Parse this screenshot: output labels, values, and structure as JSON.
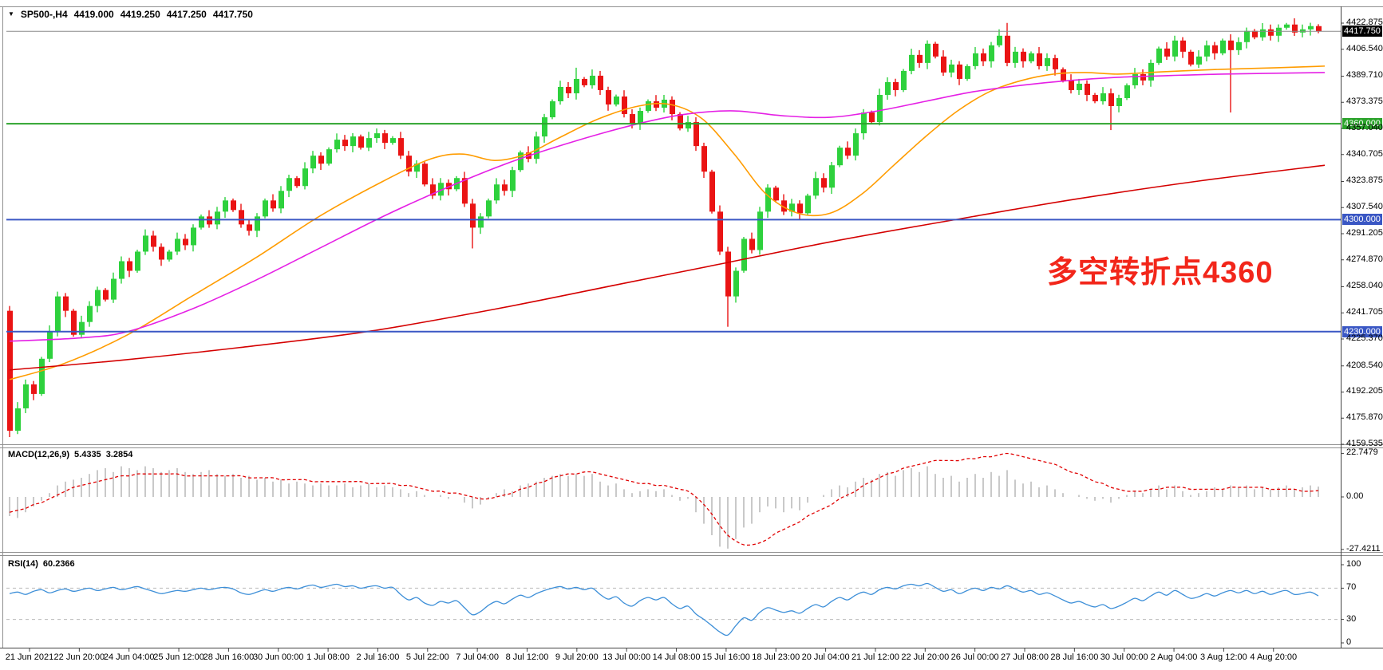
{
  "title": {
    "symbol": "SP500-,H4",
    "open": "4419.000",
    "high": "4419.250",
    "low": "4417.250",
    "close": "4417.750"
  },
  "icons": {
    "symbol_dropdown": "▼"
  },
  "annotation": {
    "text": "多空转折点4360",
    "color": "#f2261a"
  },
  "indicators": {
    "macd": {
      "label": "MACD(12,26,9)",
      "macd_value": "5.4335",
      "signal_value": "3.2854"
    },
    "rsi": {
      "label": "RSI(14)",
      "value": "60.2366"
    }
  },
  "colors": {
    "candle_up": "#2ed13d",
    "candle_down": "#ea1414",
    "ma_fast": "#ff9c00",
    "ma_mid": "#e520e5",
    "ma_slow": "#d40000",
    "macd_histogram": "#c9c9c9",
    "macd_signal": "#e00000",
    "rsi_line": "#3d8fd8",
    "level_green": "#2ca32c",
    "level_blue": "#3a57c4",
    "current_price_line": "#8a8a8a",
    "current_price_badge": "#000000"
  },
  "chart_data": [
    {
      "type": "candlestick",
      "symbol": "SP500-,H4",
      "timeframe": "H4",
      "ohlc_display": {
        "open": 4419.0,
        "high": 4419.25,
        "low": 4417.25,
        "close": 4417.75
      },
      "y_axis_ticks": [
        {
          "label": "4422.875",
          "price": 4422.875
        },
        {
          "label": "4406.540",
          "price": 4406.54
        },
        {
          "label": "4389.710",
          "price": 4389.71
        },
        {
          "label": "4373.375",
          "price": 4373.375
        },
        {
          "label": "4357.040",
          "price": 4357.04
        },
        {
          "label": "4340.705",
          "price": 4340.705
        },
        {
          "label": "4323.875",
          "price": 4323.875
        },
        {
          "label": "4307.540",
          "price": 4307.54
        },
        {
          "label": "4291.205",
          "price": 4291.205
        },
        {
          "label": "4274.870",
          "price": 4274.87
        },
        {
          "label": "4258.040",
          "price": 4258.04
        },
        {
          "label": "4241.705",
          "price": 4241.705
        },
        {
          "label": "4225.370",
          "price": 4225.37
        },
        {
          "label": "4208.540",
          "price": 4208.54
        },
        {
          "label": "4192.205",
          "price": 4192.205
        },
        {
          "label": "4175.870",
          "price": 4175.87
        },
        {
          "label": "4159.535",
          "price": 4159.535
        }
      ],
      "x_axis_labels": [
        "21 Jun 2021",
        "22 Jun 20:00",
        "24 Jun 04:00",
        "25 Jun 12:00",
        "28 Jun 16:00",
        "30 Jun 00:00",
        "1 Jul 08:00",
        "2 Jul 16:00",
        "5 Jul 22:00",
        "7 Jul 04:00",
        "8 Jul 12:00",
        "9 Jul 20:00",
        "13 Jul 00:00",
        "14 Jul 08:00",
        "15 Jul 16:00",
        "18 Jul 23:00",
        "20 Jul 04:00",
        "21 Jul 12:00",
        "22 Jul 20:00",
        "26 Jul 00:00",
        "27 Jul 08:00",
        "28 Jul 16:00",
        "30 Jul 00:00",
        "2 Aug 04:00",
        "3 Aug 12:00",
        "4 Aug 20:00"
      ],
      "price_lines": [
        {
          "name": "current-price",
          "label": "4417.750",
          "price": 4417.75,
          "color": "#8a8a8a",
          "badge_bg": "#000000",
          "width": 1
        },
        {
          "name": "level-4360",
          "label": "4360.000",
          "price": 4360.0,
          "color": "#2ca32c",
          "badge_bg": "#2ca32c",
          "width": 2
        },
        {
          "name": "level-4300",
          "label": "4300.000",
          "price": 4300.0,
          "color": "#3a57c4",
          "badge_bg": "#3a57c4",
          "width": 2
        },
        {
          "name": "level-4230",
          "label": "4230.000",
          "price": 4230.0,
          "color": "#3a57c4",
          "badge_bg": "#3a57c4",
          "width": 2
        }
      ],
      "candles": {
        "note": "estimated closes read from pixels, one candle per 10px; open = previous close",
        "closes": [
          4168,
          4182,
          4197,
          4191,
          4213,
          4230,
          4252,
          4243,
          4228,
          4236,
          4246,
          4256,
          4250,
          4263,
          4274,
          4268,
          4280,
          4290,
          4283,
          4275,
          4280,
          4288,
          4284,
          4295,
          4302,
          4297,
          4305,
          4312,
          4306,
          4297,
          4293,
          4302,
          4312,
          4307,
          4318,
          4326,
          4321,
          4332,
          4340,
          4335,
          4344,
          4350,
          4346,
          4352,
          4345,
          4351,
          4354,
          4348,
          4351,
          4340,
          4330,
          4335,
          4322,
          4315,
          4323,
          4319,
          4326,
          4310,
          4295,
          4302,
          4312,
          4322,
          4318,
          4331,
          4342,
          4338,
          4352,
          4364,
          4374,
          4383,
          4379,
          4388,
          4384,
          4390,
          4381,
          4372,
          4377,
          4366,
          4360,
          4368,
          4374,
          4370,
          4375,
          4366,
          4357,
          4361,
          4346,
          4330,
          4305,
          4280,
          4252,
          4268,
          4288,
          4281,
          4305,
          4320,
          4312,
          4305,
          4310,
          4304,
          4315,
          4326,
          4320,
          4334,
          4345,
          4340,
          4354,
          4367,
          4361,
          4378,
          4386,
          4381,
          4393,
          4403,
          4398,
          4410,
          4402,
          4392,
          4397,
          4388,
          4396,
          4404,
          4399,
          4409,
          4415,
          4398,
          4405,
          4399,
          4404,
          4396,
          4401,
          4394,
          4387,
          4381,
          4385,
          4378,
          4374,
          4379,
          4371,
          4376,
          4384,
          4391,
          4387,
          4398,
          4407,
          4402,
          4412,
          4405,
          4397,
          4402,
          4409,
          4404,
          4412,
          4406,
          4411,
          4418,
          4414,
          4419,
          4415,
          4420,
          4422,
          4417,
          4419,
          4421,
          4417.75
        ],
        "overrides": {
          "0": {
            "open": 4243,
            "high": 4246,
            "low": 4164
          },
          "58": {
            "low": 4282
          },
          "71": {
            "high": 4395
          },
          "90": {
            "low": 4233
          },
          "124": {
            "high": 4419
          },
          "125": {
            "high": 4423
          },
          "138": {
            "low": 4356
          },
          "153": {
            "low": 4367
          },
          "160": {
            "high": 4423
          }
        }
      },
      "moving_averages": [
        {
          "name": "fast",
          "color": "#ff9c00",
          "points": [
            [
              12,
              4200
            ],
            [
              80,
              4210
            ],
            [
              160,
              4228
            ],
            [
              240,
              4252
            ],
            [
              320,
              4276
            ],
            [
              400,
              4302
            ],
            [
              480,
              4324
            ],
            [
              540,
              4338
            ],
            [
              580,
              4341
            ],
            [
              620,
              4337
            ],
            [
              660,
              4341
            ],
            [
              700,
              4351
            ],
            [
              750,
              4363
            ],
            [
              800,
              4371
            ],
            [
              840,
              4372
            ],
            [
              880,
              4363
            ],
            [
              920,
              4341
            ],
            [
              960,
              4316
            ],
            [
              1000,
              4304
            ],
            [
              1040,
              4304
            ],
            [
              1080,
              4316
            ],
            [
              1120,
              4334
            ],
            [
              1160,
              4352
            ],
            [
              1200,
              4368
            ],
            [
              1240,
              4380
            ],
            [
              1280,
              4387
            ],
            [
              1320,
              4391
            ],
            [
              1360,
              4392
            ],
            [
              1400,
              4391
            ],
            [
              1440,
              4392
            ],
            [
              1480,
              4393
            ],
            [
              1530,
              4394
            ],
            [
              1600,
              4395
            ],
            [
              1660,
              4396
            ]
          ]
        },
        {
          "name": "mid",
          "color": "#e520e5",
          "points": [
            [
              12,
              4224
            ],
            [
              100,
              4226
            ],
            [
              160,
              4230
            ],
            [
              240,
              4244
            ],
            [
              320,
              4262
            ],
            [
              400,
              4282
            ],
            [
              480,
              4302
            ],
            [
              560,
              4320
            ],
            [
              640,
              4336
            ],
            [
              720,
              4349
            ],
            [
              800,
              4360
            ],
            [
              860,
              4366
            ],
            [
              920,
              4368
            ],
            [
              980,
              4365
            ],
            [
              1040,
              4364
            ],
            [
              1100,
              4368
            ],
            [
              1160,
              4374
            ],
            [
              1220,
              4380
            ],
            [
              1280,
              4384
            ],
            [
              1340,
              4387
            ],
            [
              1400,
              4389
            ],
            [
              1460,
              4390
            ],
            [
              1530,
              4391
            ],
            [
              1660,
              4392
            ]
          ]
        },
        {
          "name": "slow",
          "color": "#d40000",
          "points": [
            [
              12,
              4206
            ],
            [
              150,
              4212
            ],
            [
              300,
              4220
            ],
            [
              460,
              4230
            ],
            [
              620,
              4244
            ],
            [
              780,
              4260
            ],
            [
              900,
              4272
            ],
            [
              1050,
              4287
            ],
            [
              1220,
              4302
            ],
            [
              1350,
              4313
            ],
            [
              1500,
              4324
            ],
            [
              1660,
              4334
            ]
          ]
        }
      ],
      "annotation": "多空转折点4360"
    },
    {
      "type": "macd",
      "label": "MACD(12,26,9)",
      "macd_value": 5.4335,
      "signal_value": 3.2854,
      "axis": [
        {
          "label": "22.7479",
          "value": 22.7479
        },
        {
          "label": "0.00",
          "value": 0
        },
        {
          "label": "-27.4211",
          "value": -27.4211
        }
      ],
      "histogram": [
        -10,
        -11,
        -8,
        -5,
        -2,
        2,
        6,
        8,
        9,
        10,
        12,
        14,
        15,
        13,
        16,
        15,
        14,
        16,
        15,
        13,
        14,
        15,
        13,
        12,
        13,
        14,
        12,
        11,
        12,
        10,
        11,
        9,
        10,
        8,
        9,
        7,
        8,
        7,
        6,
        7,
        6,
        6,
        7,
        5,
        6,
        7,
        5,
        6,
        5,
        4,
        2,
        3,
        1,
        0,
        1,
        -1,
        0,
        -3,
        -6,
        -4,
        -1,
        2,
        4,
        3,
        6,
        7,
        8,
        10,
        11,
        12,
        11,
        12,
        11,
        12,
        8,
        6,
        7,
        4,
        2,
        3,
        4,
        3,
        4,
        1,
        -2,
        -1,
        -8,
        -14,
        -20,
        -26,
        -27,
        -22,
        -16,
        -14,
        -8,
        -5,
        -6,
        -8,
        -6,
        -7,
        -3,
        0,
        1,
        4,
        6,
        5,
        8,
        10,
        9,
        12,
        13,
        11,
        14,
        15,
        13,
        16,
        12,
        10,
        11,
        8,
        10,
        12,
        10,
        13,
        11,
        14,
        9,
        7,
        8,
        5,
        6,
        4,
        2,
        0,
        1,
        -1,
        -2,
        -1,
        -3,
        -1,
        1,
        3,
        2,
        4,
        6,
        4,
        6,
        3,
        1,
        2,
        3,
        5,
        4,
        6,
        5,
        6,
        4,
        5,
        4,
        5,
        6,
        4,
        5,
        6,
        5.4
      ],
      "signal": [
        -8,
        -7,
        -6,
        -4,
        -3,
        -1,
        1,
        3,
        5,
        6,
        7,
        8,
        9,
        10,
        11,
        11,
        12,
        12,
        12,
        12,
        12,
        12,
        11,
        11,
        11,
        11,
        11,
        11,
        11,
        11,
        10,
        10,
        10,
        10,
        9,
        9,
        9,
        9,
        8,
        8,
        8,
        8,
        8,
        8,
        8,
        7,
        7,
        7,
        7,
        6,
        6,
        5,
        4,
        3,
        3,
        2,
        2,
        1,
        0,
        -1,
        -1,
        0,
        1,
        2,
        4,
        5,
        7,
        8,
        10,
        11,
        12,
        12,
        13,
        13,
        12,
        11,
        10,
        9,
        8,
        7,
        7,
        6,
        6,
        5,
        4,
        3,
        0,
        -4,
        -9,
        -15,
        -20,
        -23,
        -25,
        -25,
        -24,
        -22,
        -19,
        -17,
        -15,
        -13,
        -10,
        -8,
        -6,
        -4,
        -1,
        1,
        3,
        6,
        8,
        10,
        12,
        13,
        15,
        16,
        17,
        18,
        19,
        19,
        19,
        19,
        20,
        20,
        21,
        21,
        22,
        22.7,
        22,
        21,
        20,
        19,
        18,
        17,
        15,
        13,
        12,
        10,
        8,
        7,
        5,
        4,
        3,
        3,
        3,
        4,
        4,
        5,
        5,
        5,
        4,
        4,
        4,
        4,
        4,
        5,
        5,
        5,
        5,
        5,
        4,
        4,
        4,
        4,
        3,
        3,
        3.3
      ]
    },
    {
      "type": "rsi",
      "label": "RSI(14)",
      "value": 60.2366,
      "axis": [
        100,
        70,
        30,
        0
      ],
      "levels": [
        70,
        30
      ],
      "values": [
        63,
        65,
        62,
        66,
        68,
        64,
        67,
        69,
        66,
        68,
        70,
        67,
        69,
        71,
        68,
        70,
        72,
        69,
        66,
        63,
        65,
        67,
        66,
        68,
        70,
        68,
        70,
        71,
        69,
        64,
        62,
        65,
        68,
        66,
        69,
        71,
        69,
        72,
        74,
        71,
        73,
        75,
        72,
        73,
        70,
        72,
        73,
        70,
        71,
        62,
        55,
        58,
        51,
        48,
        53,
        51,
        54,
        45,
        36,
        40,
        48,
        53,
        50,
        56,
        61,
        58,
        63,
        67,
        70,
        72,
        69,
        71,
        68,
        70,
        62,
        56,
        59,
        51,
        47,
        54,
        58,
        55,
        58,
        50,
        44,
        47,
        37,
        30,
        22,
        14,
        10,
        22,
        32,
        29,
        39,
        45,
        42,
        39,
        41,
        38,
        44,
        49,
        46,
        53,
        58,
        55,
        61,
        65,
        62,
        68,
        71,
        69,
        73,
        75,
        73,
        76,
        71,
        66,
        68,
        63,
        67,
        70,
        67,
        71,
        69,
        73,
        69,
        65,
        67,
        62,
        64,
        60,
        55,
        51,
        53,
        49,
        46,
        49,
        44,
        47,
        52,
        57,
        54,
        60,
        65,
        61,
        67,
        62,
        57,
        59,
        63,
        60,
        64,
        67,
        64,
        67,
        63,
        66,
        62,
        65,
        67,
        62,
        63,
        65,
        60.2
      ]
    }
  ]
}
